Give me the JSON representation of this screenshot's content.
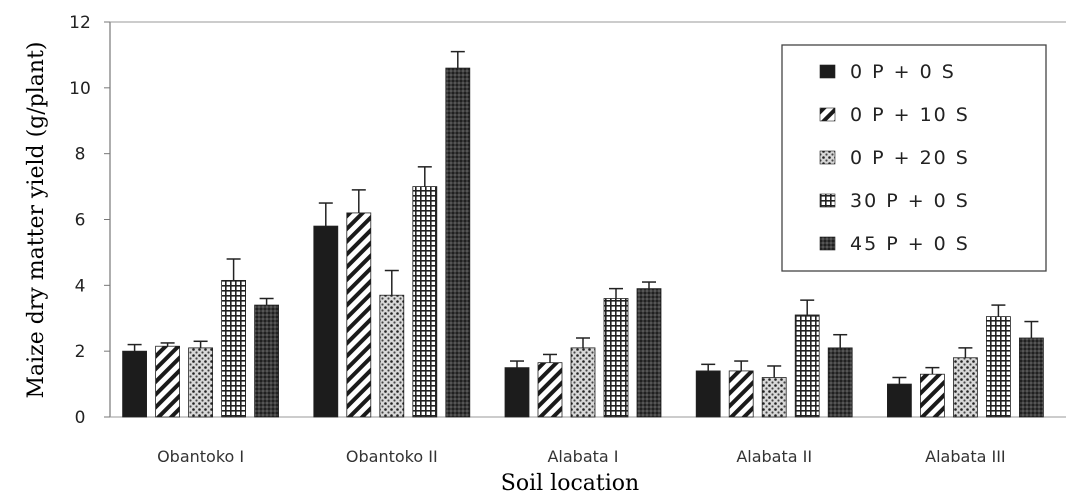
{
  "chart_data": {
    "type": "bar",
    "title": "",
    "xlabel": "Soil location",
    "ylabel": "Maize  dry matter yield (g/plant)",
    "ylim": [
      0,
      12
    ],
    "yticks": [
      0,
      2,
      4,
      6,
      8,
      10,
      12
    ],
    "grid": false,
    "legend_position": "top-right",
    "categories": [
      "Obantoko I",
      "Obantoko II",
      "Alabata I",
      "Alabata II",
      "Alabata III"
    ],
    "series": [
      {
        "name": "0 P + 0 S",
        "pattern": "solid",
        "values": [
          2.0,
          5.8,
          1.5,
          1.4,
          1.0
        ],
        "errors": [
          0.2,
          0.7,
          0.2,
          0.2,
          0.2
        ]
      },
      {
        "name": "0 P + 10 S",
        "pattern": "diagonal",
        "values": [
          2.15,
          6.2,
          1.65,
          1.4,
          1.3
        ],
        "errors": [
          0.1,
          0.7,
          0.25,
          0.3,
          0.2
        ]
      },
      {
        "name": "0 P + 20 S",
        "pattern": "dots",
        "values": [
          2.1,
          3.7,
          2.1,
          1.2,
          1.8
        ],
        "errors": [
          0.2,
          0.75,
          0.3,
          0.35,
          0.3
        ]
      },
      {
        "name": "30 P + 0 S",
        "pattern": "grid",
        "values": [
          4.15,
          7.0,
          3.6,
          3.1,
          3.05
        ],
        "errors": [
          0.65,
          0.6,
          0.3,
          0.45,
          0.35
        ]
      },
      {
        "name": "45 P + 0 S",
        "pattern": "dense",
        "values": [
          3.4,
          10.6,
          3.9,
          2.1,
          2.4
        ],
        "errors": [
          0.2,
          0.5,
          0.2,
          0.4,
          0.5
        ]
      }
    ]
  }
}
